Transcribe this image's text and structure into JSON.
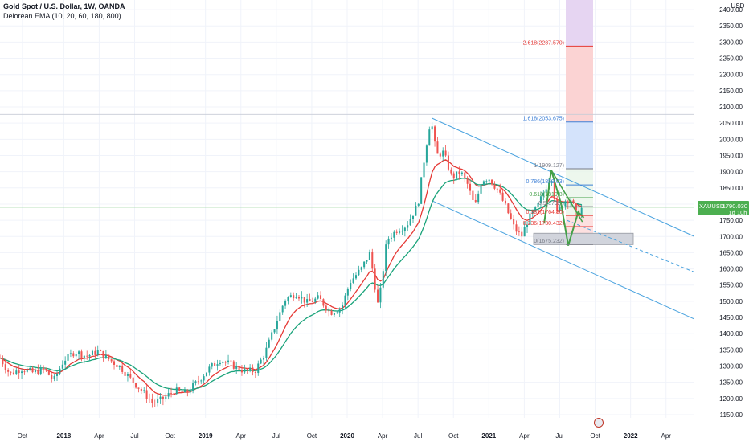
{
  "header": {
    "title": "Gold Spot / U.S. Dollar, 1W, OANDA",
    "indicator": "Delorean EMA (10, 20, 60, 180, 800)"
  },
  "currency": "USD",
  "colors": {
    "up": "#26a69a",
    "down": "#ef5350",
    "ema_fast": "#e53935",
    "ema_slow": "#1aa37a",
    "channel": "#4aa3df",
    "pattern": "#43a047",
    "price_label": "#4caf50",
    "fib_blue": "#3d7fd6",
    "fib_red": "#e53935"
  },
  "price_label": {
    "symbol": "XAUUSD",
    "price": "1790.030",
    "countdown": "1d 10h"
  },
  "fib_levels": [
    {
      "label": "2.618(2287.570)",
      "price": 2287.57,
      "color": "red"
    },
    {
      "label": "1.618(2053.675)",
      "price": 2053.675,
      "color": "blue"
    },
    {
      "label": "1(1909.127)",
      "price": 1909.127,
      "color": "gray"
    },
    {
      "label": "0.786(1859.03)",
      "price": 1859.03,
      "color": "blue"
    },
    {
      "label": "0.618(1819.8)",
      "price": 1819.8,
      "color": "green"
    },
    {
      "label": "0.5(1792.)",
      "price": 1792,
      "color": "gray"
    },
    {
      "label": "0.382(1764.80)",
      "price": 1764.8,
      "color": "red"
    },
    {
      "label": "0.236(1730.432)",
      "price": 1730.432,
      "color": "red"
    },
    {
      "label": "0(1675.232)",
      "price": 1675.232,
      "color": "gray"
    }
  ],
  "chart_data": {
    "type": "candlestick",
    "title": "Gold Spot / U.S. Dollar, 1W, OANDA",
    "ylabel": "USD",
    "ylim": [
      1140,
      2430
    ],
    "y_ticks": [
      1150,
      1200,
      1250,
      1300,
      1350,
      1400,
      1450,
      1500,
      1550,
      1600,
      1650,
      1700,
      1750,
      1800,
      1850,
      1900,
      1950,
      2000,
      2050,
      2100,
      2150,
      2200,
      2250,
      2300,
      2350,
      2400
    ],
    "x_ticks": [
      "Oct",
      "2018",
      "Apr",
      "Jul",
      "Oct",
      "2019",
      "Apr",
      "Jul",
      "Oct",
      "2020",
      "Apr",
      "Jul",
      "Oct",
      "2021",
      "Apr",
      "Jul",
      "Oct",
      "2022",
      "Apr"
    ],
    "x_tick_months": [
      2017.708,
      2018.0,
      2018.25,
      2018.5,
      2018.75,
      2019.0,
      2019.25,
      2019.5,
      2019.75,
      2020.0,
      2020.25,
      2020.5,
      2020.75,
      2021.0,
      2021.25,
      2021.5,
      2021.75,
      2022.0,
      2022.25
    ],
    "xlim": [
      2017.55,
      2022.45
    ],
    "anchors": [
      [
        2017.55,
        1325
      ],
      [
        2017.62,
        1275
      ],
      [
        2017.7,
        1292
      ],
      [
        2017.78,
        1280
      ],
      [
        2017.86,
        1290
      ],
      [
        2017.93,
        1256
      ],
      [
        2018.0,
        1318
      ],
      [
        2018.08,
        1345
      ],
      [
        2018.16,
        1330
      ],
      [
        2018.24,
        1345
      ],
      [
        2018.32,
        1320
      ],
      [
        2018.4,
        1297
      ],
      [
        2018.48,
        1255
      ],
      [
        2018.56,
        1220
      ],
      [
        2018.63,
        1185
      ],
      [
        2018.7,
        1198
      ],
      [
        2018.78,
        1225
      ],
      [
        2018.86,
        1215
      ],
      [
        2018.94,
        1250
      ],
      [
        2019.02,
        1290
      ],
      [
        2019.1,
        1320
      ],
      [
        2019.18,
        1305
      ],
      [
        2019.27,
        1285
      ],
      [
        2019.35,
        1285
      ],
      [
        2019.42,
        1340
      ],
      [
        2019.48,
        1410
      ],
      [
        2019.56,
        1505
      ],
      [
        2019.64,
        1525
      ],
      [
        2019.72,
        1495
      ],
      [
        2019.8,
        1510
      ],
      [
        2019.88,
        1465
      ],
      [
        2019.96,
        1480
      ],
      [
        2020.02,
        1560
      ],
      [
        2020.1,
        1600
      ],
      [
        2020.16,
        1650
      ],
      [
        2020.22,
        1480
      ],
      [
        2020.28,
        1690
      ],
      [
        2020.35,
        1720
      ],
      [
        2020.42,
        1735
      ],
      [
        2020.5,
        1800
      ],
      [
        2020.55,
        1960
      ],
      [
        2020.59,
        2065
      ],
      [
        2020.63,
        1950
      ],
      [
        2020.68,
        1960
      ],
      [
        2020.74,
        1880
      ],
      [
        2020.8,
        1900
      ],
      [
        2020.85,
        1860
      ],
      [
        2020.9,
        1790
      ],
      [
        2020.95,
        1875
      ],
      [
        2021.0,
        1880
      ],
      [
        2021.06,
        1845
      ],
      [
        2021.12,
        1790
      ],
      [
        2021.18,
        1725
      ],
      [
        2021.23,
        1700
      ],
      [
        2021.28,
        1755
      ],
      [
        2021.34,
        1790
      ],
      [
        2021.39,
        1840
      ],
      [
        2021.44,
        1890
      ],
      [
        2021.48,
        1770
      ],
      [
        2021.53,
        1810
      ],
      [
        2021.58,
        1815
      ],
      [
        2021.62,
        1765
      ],
      [
        2021.66,
        1790
      ]
    ],
    "ema_fast_offset": 0,
    "channel": {
      "upper": [
        [
          2020.6,
          2065
        ],
        [
          2022.45,
          1700
        ]
      ],
      "lower": [
        [
          2020.6,
          1810
        ],
        [
          2022.45,
          1445
        ]
      ],
      "mid_dashed": [
        [
          2021.55,
          1750
        ],
        [
          2022.45,
          1590
        ]
      ]
    }
  }
}
